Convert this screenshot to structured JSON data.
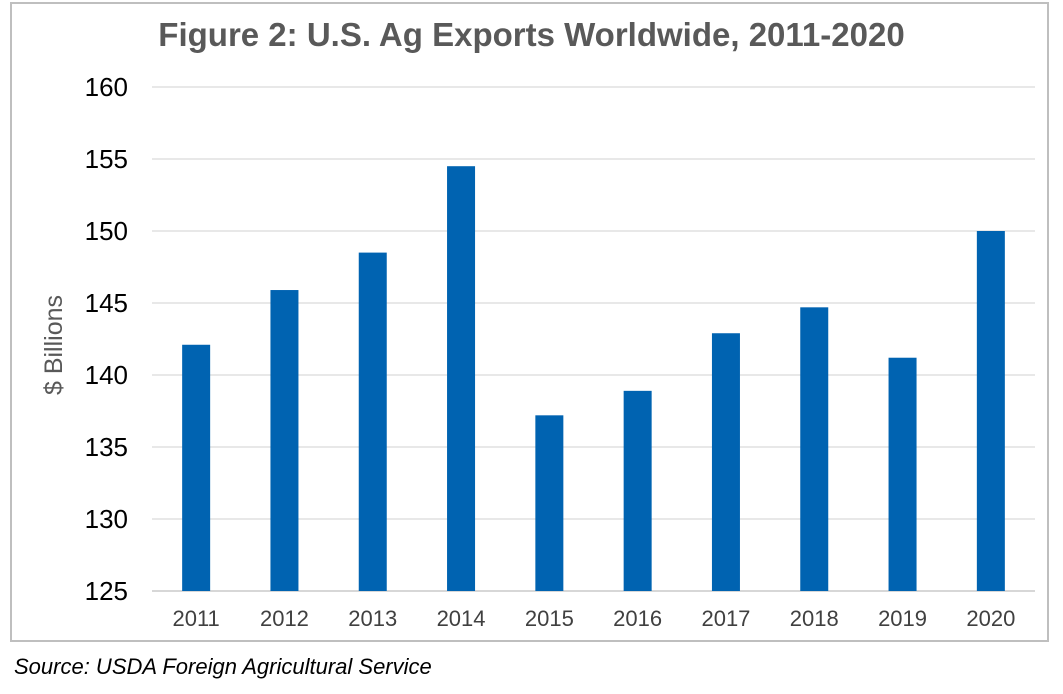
{
  "title": "Figure 2: U.S. Ag Exports Worldwide, 2011-2020",
  "source": "Source: USDA Foreign Agricultural Service",
  "colors": {
    "bar": "#0063b1",
    "grid": "#d9d9d9",
    "frame": "#bfbfbf"
  },
  "chart_data": {
    "type": "bar",
    "title": "Figure 2: U.S. Ag Exports Worldwide, 2011-2020",
    "xlabel": "",
    "ylabel": "$ Billions",
    "categories": [
      "2011",
      "2012",
      "2013",
      "2014",
      "2015",
      "2016",
      "2017",
      "2018",
      "2019",
      "2020"
    ],
    "values": [
      142.1,
      145.9,
      148.5,
      154.5,
      137.2,
      138.9,
      142.9,
      144.7,
      141.2,
      150.0
    ],
    "ylim": [
      125,
      160
    ],
    "yticks": [
      125,
      130,
      135,
      140,
      145,
      150,
      155,
      160
    ],
    "grid": true,
    "legend": "none"
  }
}
